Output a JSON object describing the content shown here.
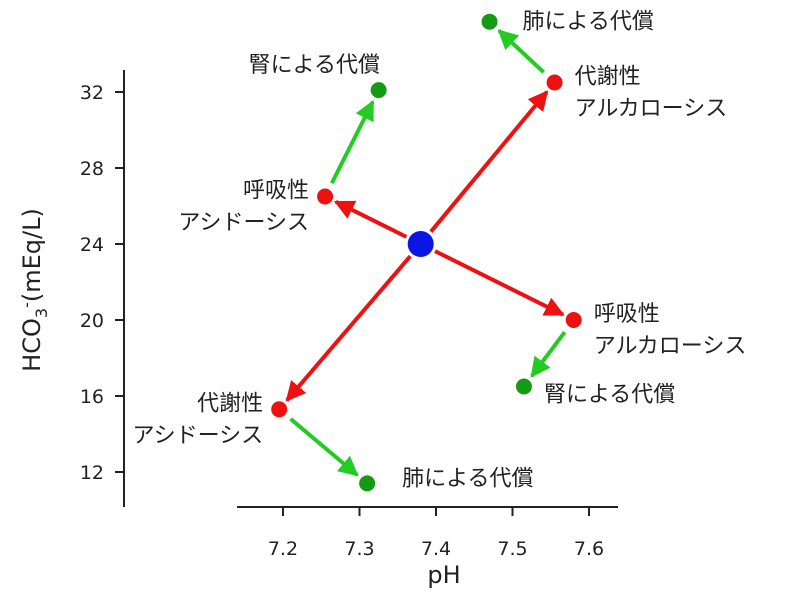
{
  "chart_data": {
    "type": "scatter",
    "title": "",
    "xlabel": "pH",
    "ylabel": "HCO3-(mEq/L)",
    "ylabel_parts": {
      "main": "HCO",
      "sub": "3",
      "sup": "-",
      "rest": "(mEq/L)"
    },
    "xlim": [
      7.15,
      7.6
    ],
    "ylim": [
      10.5,
      33
    ],
    "x_ticks": [
      7.2,
      7.3,
      7.4,
      7.5,
      7.6
    ],
    "x_tick_labels": [
      "7.2",
      "7.3",
      "7.4",
      "7.5",
      "7.6"
    ],
    "y_ticks": [
      12,
      16,
      20,
      24,
      28,
      32
    ],
    "y_tick_labels": [
      "12",
      "16",
      "20",
      "24",
      "28",
      "32"
    ],
    "grid": false,
    "colors": {
      "normal": "#0b16e6",
      "disorder": "#ee1111",
      "compensation": "#159a15",
      "disorder_arrow": "#ee1111",
      "compensation_arrow": "#22cc22"
    },
    "normal_point": {
      "x": 7.38,
      "y": 24
    },
    "disorders": [
      {
        "key": "metabolic-alkalosis",
        "x": 7.555,
        "y": 32.5,
        "label_lines": [
          "代謝性",
          "アルカローシス"
        ],
        "label_side": "right"
      },
      {
        "key": "respiratory-acidosis",
        "x": 7.255,
        "y": 26.5,
        "label_lines": [
          "呼吸性",
          "アシドーシス"
        ],
        "label_side": "left"
      },
      {
        "key": "respiratory-alkalosis",
        "x": 7.58,
        "y": 20,
        "label_lines": [
          "呼吸性",
          "アルカローシス"
        ],
        "label_side": "right"
      },
      {
        "key": "metabolic-acidosis",
        "x": 7.195,
        "y": 15.3,
        "label_lines": [
          "代謝性",
          "アシドーシス"
        ],
        "label_side": "left"
      }
    ],
    "compensations": [
      {
        "key": "metabolic-alkalosis-compensation",
        "from": "metabolic-alkalosis",
        "x": 7.47,
        "y": 35.7,
        "label": "肺による代償"
      },
      {
        "key": "respiratory-acidosis-compensation",
        "from": "respiratory-acidosis",
        "x": 7.325,
        "y": 32.1,
        "label": "腎による代償"
      },
      {
        "key": "respiratory-alkalosis-compensation",
        "from": "respiratory-alkalosis",
        "x": 7.515,
        "y": 16.5,
        "label": "腎による代償"
      },
      {
        "key": "metabolic-acidosis-compensation",
        "from": "metabolic-acidosis",
        "x": 7.31,
        "y": 11.4,
        "label": "肺による代償"
      }
    ]
  }
}
